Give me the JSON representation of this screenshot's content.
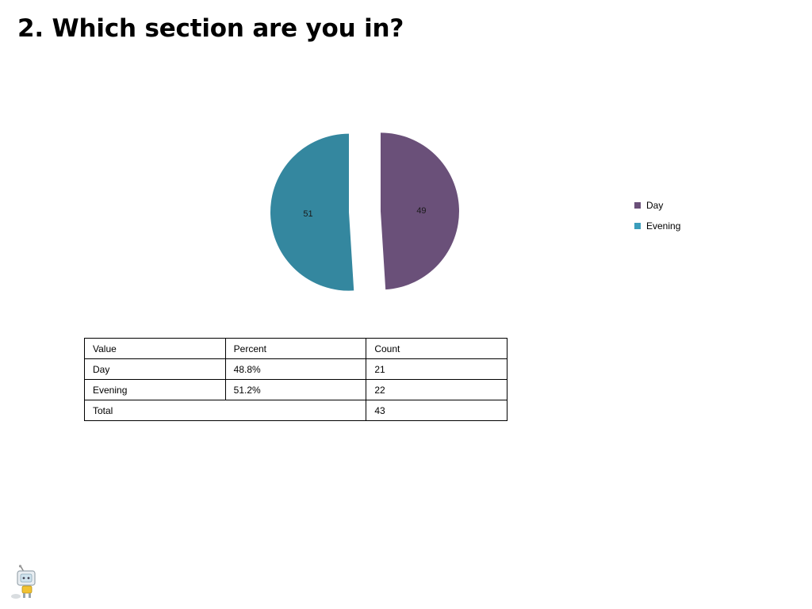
{
  "title": "2. Which section are you in?",
  "chart_data": {
    "type": "pie",
    "slices": [
      {
        "label": "Day",
        "value": 49,
        "color": "#6a5079"
      },
      {
        "label": "Evening",
        "value": 51,
        "color": "#34879f"
      }
    ],
    "legend": {
      "placement": "right",
      "items": [
        {
          "label": "Day",
          "color": "#6a5079"
        },
        {
          "label": "Evening",
          "color": "#3b9dbb"
        }
      ]
    }
  },
  "table": {
    "headers": [
      "Value",
      "Percent",
      "Count"
    ],
    "rows": [
      [
        "Day",
        "48.8%",
        "21"
      ],
      [
        "Evening",
        "51.2%",
        "22"
      ]
    ],
    "total": {
      "label": "Total",
      "count": "43"
    }
  }
}
